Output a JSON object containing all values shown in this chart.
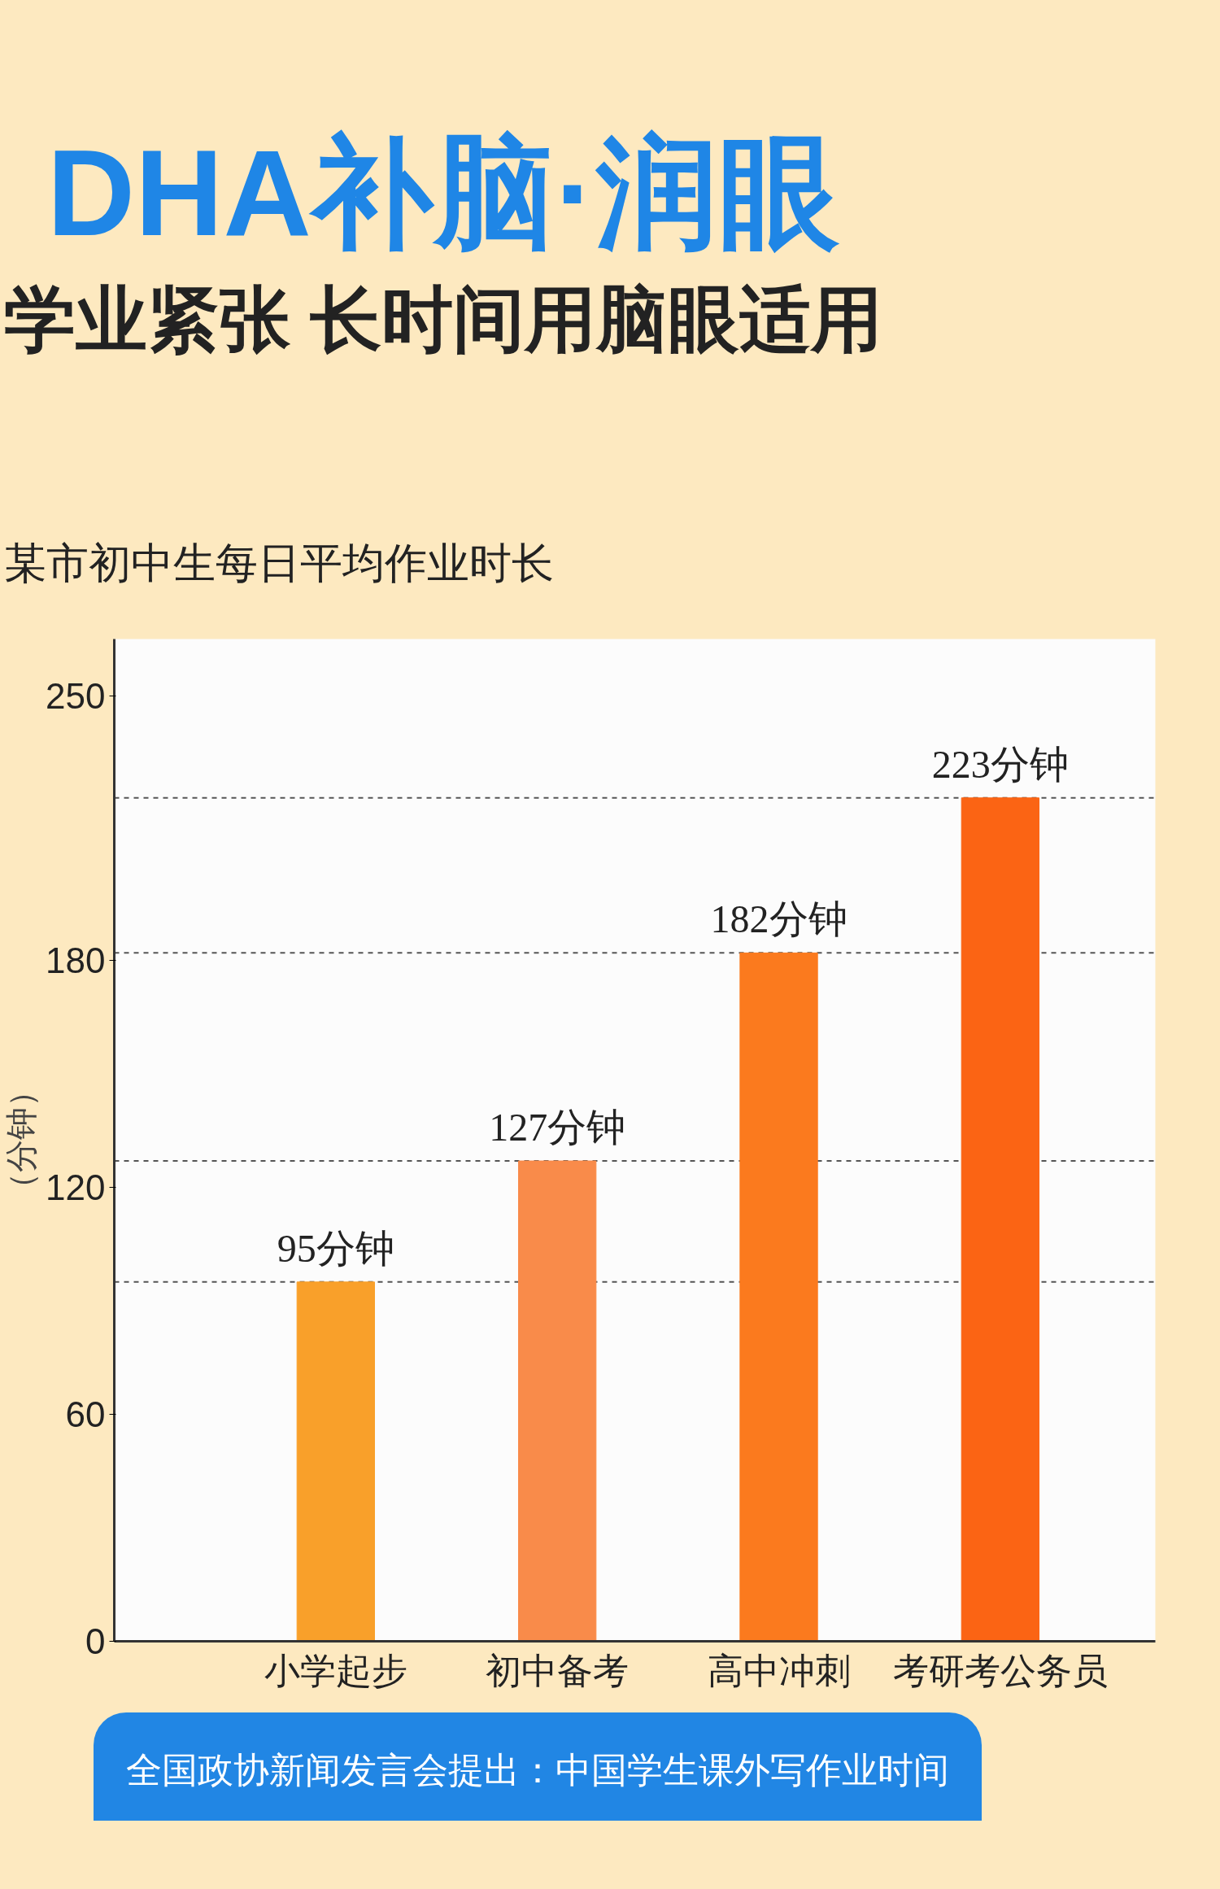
{
  "chart_data": {
    "type": "bar",
    "title": "DHA补脑·润眼",
    "subtitle": "学业紧张 长时间用脑眼适用",
    "annotations": [
      "某市初中生每日平均作业时长",
      "全国政协新闻发言会提出：中国学生课外写作业时间"
    ],
    "ylabel": "（分钟）",
    "categories": [
      "小学起步",
      "初中备考",
      "高中冲刺",
      "考研考公务员"
    ],
    "values": [
      95,
      127,
      182,
      223
    ],
    "colors": [
      "#f9a02a",
      "#f98b4a",
      "#fb7a1e",
      "#fb6414"
    ],
    "value_labels": [
      "95分钟",
      "127分钟",
      "182分钟",
      "223分钟"
    ],
    "ylim": [
      0,
      265
    ],
    "yticks": [
      0,
      60,
      120,
      180,
      250
    ],
    "ref_lines": [
      {
        "axis": "y",
        "value": 95,
        "color": "#555555",
        "line_style": "dashed"
      },
      {
        "axis": "y",
        "value": 127,
        "color": "#555555",
        "line_style": "dashed"
      },
      {
        "axis": "y",
        "value": 182,
        "color": "#555555",
        "line_style": "dashed"
      },
      {
        "axis": "y",
        "value": 223,
        "color": "#555555",
        "line_style": "dashed"
      }
    ],
    "grid": false
  }
}
